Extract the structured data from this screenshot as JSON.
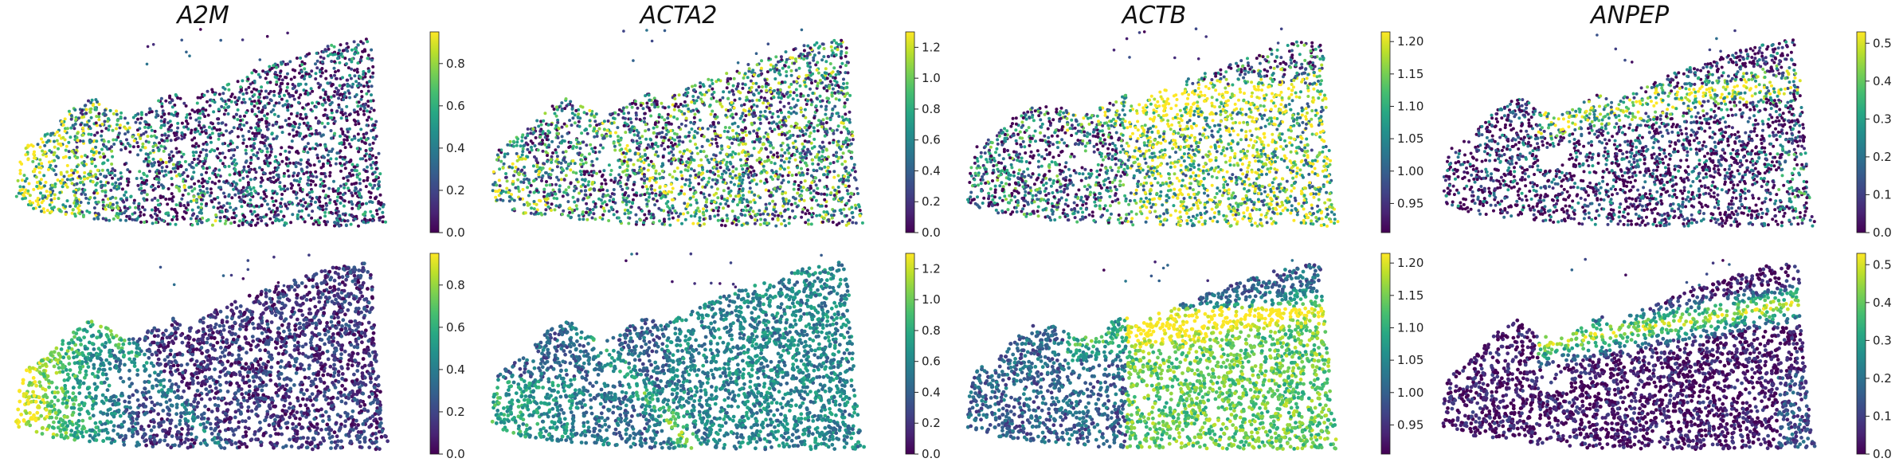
{
  "chart_data": {
    "type": "scatter",
    "description_kind": "spatial gene expression maps, 2 rows x 4 genes, viridis colormap",
    "colormap": "viridis",
    "genes": [
      "A2M",
      "ACTA2",
      "ACTB",
      "ANPEP"
    ],
    "panels": [
      {
        "gene": "A2M",
        "row": 1,
        "vmin": 0.0,
        "vmax": 0.95,
        "ticks": [
          "0.0",
          "0.2",
          "0.4",
          "0.6",
          "0.8"
        ],
        "tick_values": [
          0.0,
          0.2,
          0.4,
          0.6,
          0.8
        ]
      },
      {
        "gene": "ACTA2",
        "row": 1,
        "vmin": 0.0,
        "vmax": 1.3,
        "ticks": [
          "0.0",
          "0.2",
          "0.4",
          "0.6",
          "0.8",
          "1.0",
          "1.2"
        ],
        "tick_values": [
          0.0,
          0.2,
          0.4,
          0.6,
          0.8,
          1.0,
          1.2
        ]
      },
      {
        "gene": "ACTB",
        "row": 1,
        "vmin": 0.905,
        "vmax": 1.215,
        "ticks": [
          "0.95",
          "1.00",
          "1.05",
          "1.10",
          "1.15",
          "1.20"
        ],
        "tick_values": [
          0.95,
          1.0,
          1.05,
          1.1,
          1.15,
          1.2
        ]
      },
      {
        "gene": "ANPEP",
        "row": 1,
        "vmin": 0.0,
        "vmax": 0.53,
        "ticks": [
          "0.0",
          "0.1",
          "0.2",
          "0.3",
          "0.4",
          "0.5"
        ],
        "tick_values": [
          0.0,
          0.1,
          0.2,
          0.3,
          0.4,
          0.5
        ]
      },
      {
        "gene": "A2M",
        "row": 2,
        "vmin": 0.0,
        "vmax": 0.95,
        "ticks": [
          "0.0",
          "0.2",
          "0.4",
          "0.6",
          "0.8"
        ],
        "tick_values": [
          0.0,
          0.2,
          0.4,
          0.6,
          0.8
        ]
      },
      {
        "gene": "ACTA2",
        "row": 2,
        "vmin": 0.0,
        "vmax": 1.3,
        "ticks": [
          "0.0",
          "0.2",
          "0.4",
          "0.6",
          "0.8",
          "1.0",
          "1.2"
        ],
        "tick_values": [
          0.0,
          0.2,
          0.4,
          0.6,
          0.8,
          1.0,
          1.2
        ]
      },
      {
        "gene": "ACTB",
        "row": 2,
        "vmin": 0.905,
        "vmax": 1.215,
        "ticks": [
          "0.95",
          "1.00",
          "1.05",
          "1.10",
          "1.15",
          "1.20"
        ],
        "tick_values": [
          0.95,
          1.0,
          1.05,
          1.1,
          1.15,
          1.2
        ]
      },
      {
        "gene": "ANPEP",
        "row": 2,
        "vmin": 0.0,
        "vmax": 0.53,
        "ticks": [
          "0.0",
          "0.1",
          "0.2",
          "0.3",
          "0.4",
          "0.5"
        ],
        "tick_values": [
          0.0,
          0.1,
          0.2,
          0.3,
          0.4,
          0.5
        ]
      }
    ],
    "colors": {
      "viridis_low": "#440154",
      "viridis_mid": "#21918c",
      "viridis_high": "#fde725"
    },
    "grid": false,
    "legend": "colorbar right of each panel"
  }
}
